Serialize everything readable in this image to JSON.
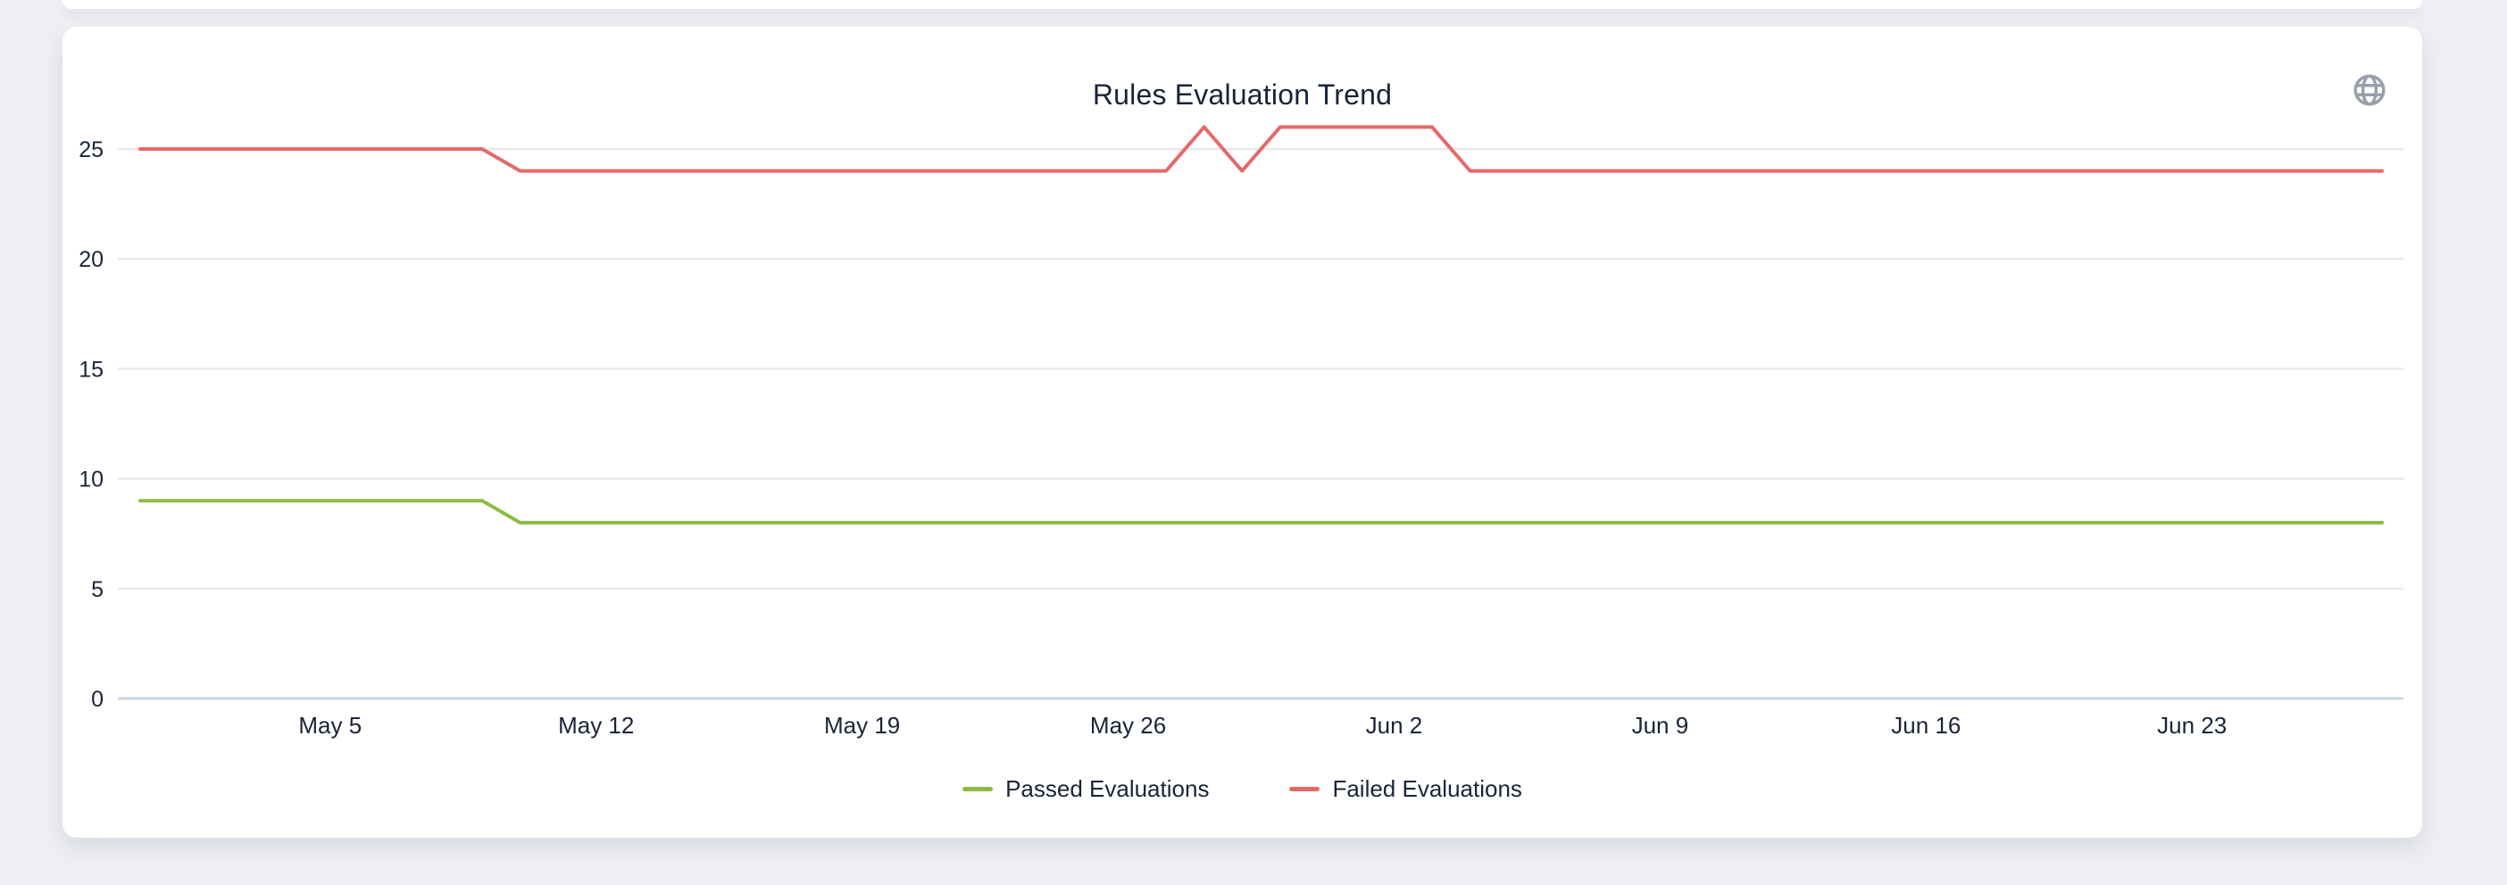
{
  "page": {
    "background_color": "#edeff3",
    "card_color": "#ffffff"
  },
  "header": {
    "globe_icon": "globe",
    "globe_icon_color": "#9aa0ab"
  },
  "chart_data": {
    "type": "line",
    "title": "Rules Evaluation Trend",
    "xlabel": "",
    "ylabel": "",
    "grid": true,
    "legend_position": "bottom",
    "ylim": [
      0,
      27
    ],
    "yticks": [
      0,
      5,
      10,
      15,
      20,
      25
    ],
    "xtick_labels": [
      "May 5",
      "May 12",
      "May 19",
      "May 26",
      "Jun 2",
      "Jun 9",
      "Jun 16",
      "Jun 23"
    ],
    "xtick_indices": [
      5,
      12,
      19,
      26,
      33,
      40,
      47,
      54
    ],
    "x": [
      "Apr 30",
      "May 1",
      "May 2",
      "May 3",
      "May 4",
      "May 5",
      "May 6",
      "May 7",
      "May 8",
      "May 9",
      "May 10",
      "May 11",
      "May 12",
      "May 13",
      "May 14",
      "May 15",
      "May 16",
      "May 17",
      "May 18",
      "May 19",
      "May 20",
      "May 21",
      "May 22",
      "May 23",
      "May 24",
      "May 25",
      "May 26",
      "May 27",
      "May 28",
      "May 29",
      "May 30",
      "May 31",
      "Jun 1",
      "Jun 2",
      "Jun 3",
      "Jun 4",
      "Jun 5",
      "Jun 6",
      "Jun 7",
      "Jun 8",
      "Jun 9",
      "Jun 10",
      "Jun 11",
      "Jun 12",
      "Jun 13",
      "Jun 14",
      "Jun 15",
      "Jun 16",
      "Jun 17",
      "Jun 18",
      "Jun 19",
      "Jun 20",
      "Jun 21",
      "Jun 22",
      "Jun 23",
      "Jun 24",
      "Jun 25",
      "Jun 26",
      "Jun 27",
      "Jun 28"
    ],
    "series": [
      {
        "name": "Passed Evaluations",
        "color": "#8dbb44",
        "values": [
          9,
          9,
          9,
          9,
          9,
          9,
          9,
          9,
          9,
          9,
          8,
          8,
          8,
          8,
          8,
          8,
          8,
          8,
          8,
          8,
          8,
          8,
          8,
          8,
          8,
          8,
          8,
          8,
          8,
          8,
          8,
          8,
          8,
          8,
          8,
          8,
          8,
          8,
          8,
          8,
          8,
          8,
          8,
          8,
          8,
          8,
          8,
          8,
          8,
          8,
          8,
          8,
          8,
          8,
          8,
          8,
          8,
          8,
          8,
          8
        ]
      },
      {
        "name": "Failed Evaluations",
        "color": "#e5696b",
        "values": [
          25,
          25,
          25,
          25,
          25,
          25,
          25,
          25,
          25,
          25,
          24,
          24,
          24,
          24,
          24,
          24,
          24,
          24,
          24,
          24,
          24,
          24,
          24,
          24,
          24,
          24,
          24,
          24,
          26,
          24,
          26,
          26,
          26,
          26,
          26,
          24,
          24,
          24,
          24,
          24,
          24,
          24,
          24,
          24,
          24,
          24,
          24,
          24,
          24,
          24,
          24,
          24,
          24,
          24,
          24,
          24,
          24,
          24,
          24,
          24
        ]
      }
    ],
    "colors": {
      "grid_line": "#e9e9eb",
      "zero_axis_line": "#ccd5e4",
      "tick_text": "#1a2438"
    }
  }
}
